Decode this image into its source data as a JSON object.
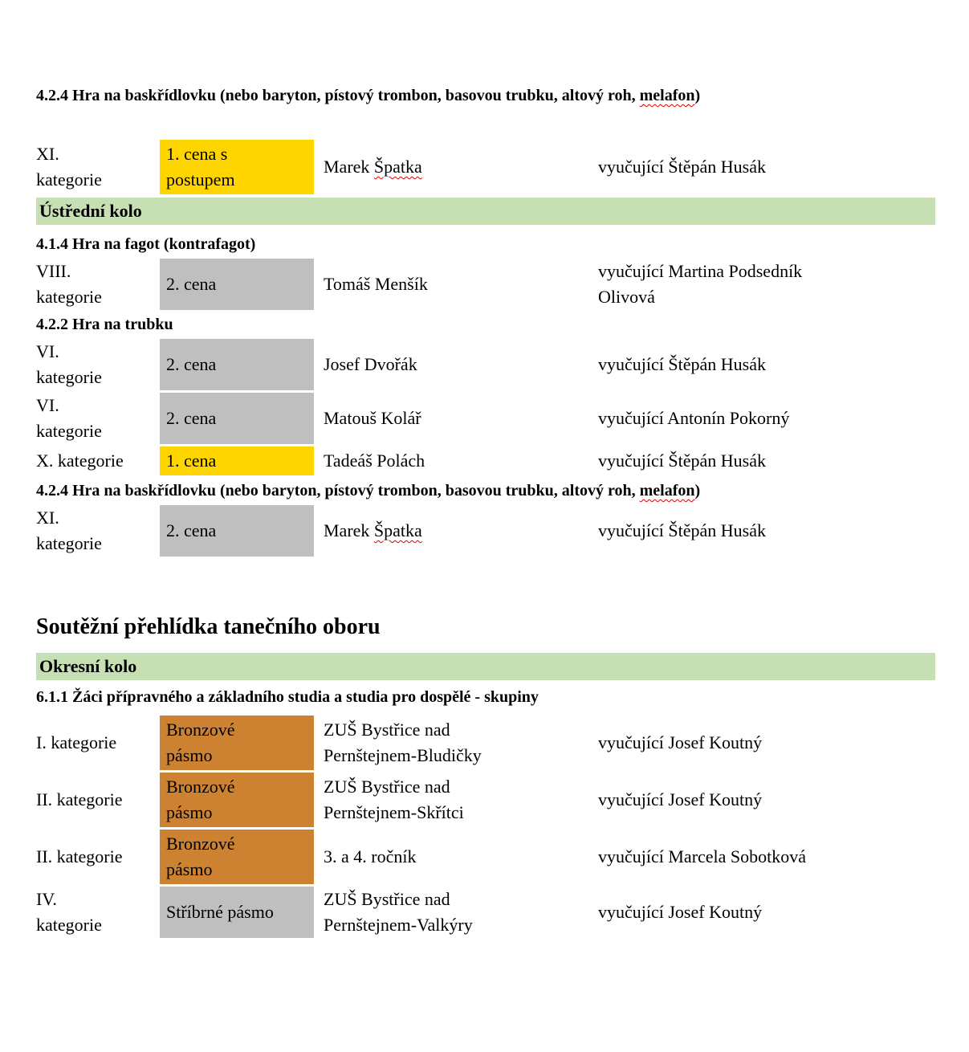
{
  "colors": {
    "highlight_gold": "#FFD500",
    "highlight_gray": "#BFBFBF",
    "highlight_bronze": "#CD8232",
    "banner_green": "#C6E0B4",
    "squiggle_red": "#E00000"
  },
  "headings": {
    "h424a": {
      "pre": "4.2.4 Hra na baskřídlovku (nebo baryton, pístový trombon, basovou trubku, altový roh, ",
      "misspelled": "melafon",
      "post": ")"
    },
    "h414": "4.1.4 Hra na fagot (kontrafagot)",
    "h422": "4.2.2 Hra na trubku",
    "h424b": {
      "pre": "4.2.4 Hra na baskřídlovku (nebo baryton, pístový trombon, basovou trubku, altový roh, ",
      "misspelled": "melafon",
      "post": ")"
    },
    "h611": "6.1.1 Žáci přípravného a základního studia a studia pro dospělé - skupiny"
  },
  "banners": {
    "ustredni": "Ústřední kolo",
    "okresni": "Okresní kolo"
  },
  "section_title": "Soutěžní přehlídka tanečního oboru",
  "rows": {
    "r1": {
      "category": "XI.\nkategorie",
      "prize": "1. cena s\npostupem",
      "prize_color": "#FFD500",
      "name": "Marek ",
      "name_miss": "Špatka",
      "teacher": "vyučující Štěpán Husák"
    },
    "r2": {
      "category": "VIII.\nkategorie",
      "prize": "2. cena",
      "prize_color": "#BFBFBF",
      "name": "Tomáš Menšík",
      "teacher": "vyučující Martina Podsedník\nOlivová"
    },
    "r3": {
      "category": "VI.\nkategorie",
      "prize": "2. cena",
      "prize_color": "#BFBFBF",
      "name": "Josef Dvořák",
      "teacher": "vyučující Štěpán Husák"
    },
    "r4": {
      "category": "VI.\nkategorie",
      "prize": "2. cena",
      "prize_color": "#BFBFBF",
      "name": "Matouš Kolář",
      "teacher": "vyučující Antonín Pokorný"
    },
    "r5": {
      "category": "X. kategorie",
      "prize": "1. cena",
      "prize_color": "#FFD500",
      "name": "Tadeáš Polách",
      "teacher": "vyučující Štěpán Husák"
    },
    "r6": {
      "category": "XI.\nkategorie",
      "prize": "2. cena",
      "prize_color": "#BFBFBF",
      "name": "Marek ",
      "name_miss": "Špatka",
      "teacher": "vyučující Štěpán Husák"
    },
    "r7": {
      "category": "I. kategorie",
      "prize": "Bronzové\npásmo",
      "prize_color": "#CD8232",
      "name": "ZUŠ Bystřice nad\nPernštejnem-Bludičky",
      "teacher": "vyučující Josef Koutný"
    },
    "r8": {
      "category": "II. kategorie",
      "prize": "Bronzové\npásmo",
      "prize_color": "#CD8232",
      "name": "ZUŠ Bystřice nad\nPernštejnem-Skřítci",
      "teacher": "vyučující Josef Koutný"
    },
    "r9": {
      "category": "II. kategorie",
      "prize": "Bronzové\npásmo",
      "prize_color": "#CD8232",
      "name": "3. a 4. ročník",
      "teacher": "vyučující Marcela Sobotková"
    },
    "r10": {
      "category": "IV.\nkategorie",
      "prize": "Stříbrné pásmo",
      "prize_color": "#BFBFBF",
      "name": "ZUŠ Bystřice nad\nPernštejnem-Valkýry",
      "teacher": "vyučující Josef Koutný"
    }
  }
}
